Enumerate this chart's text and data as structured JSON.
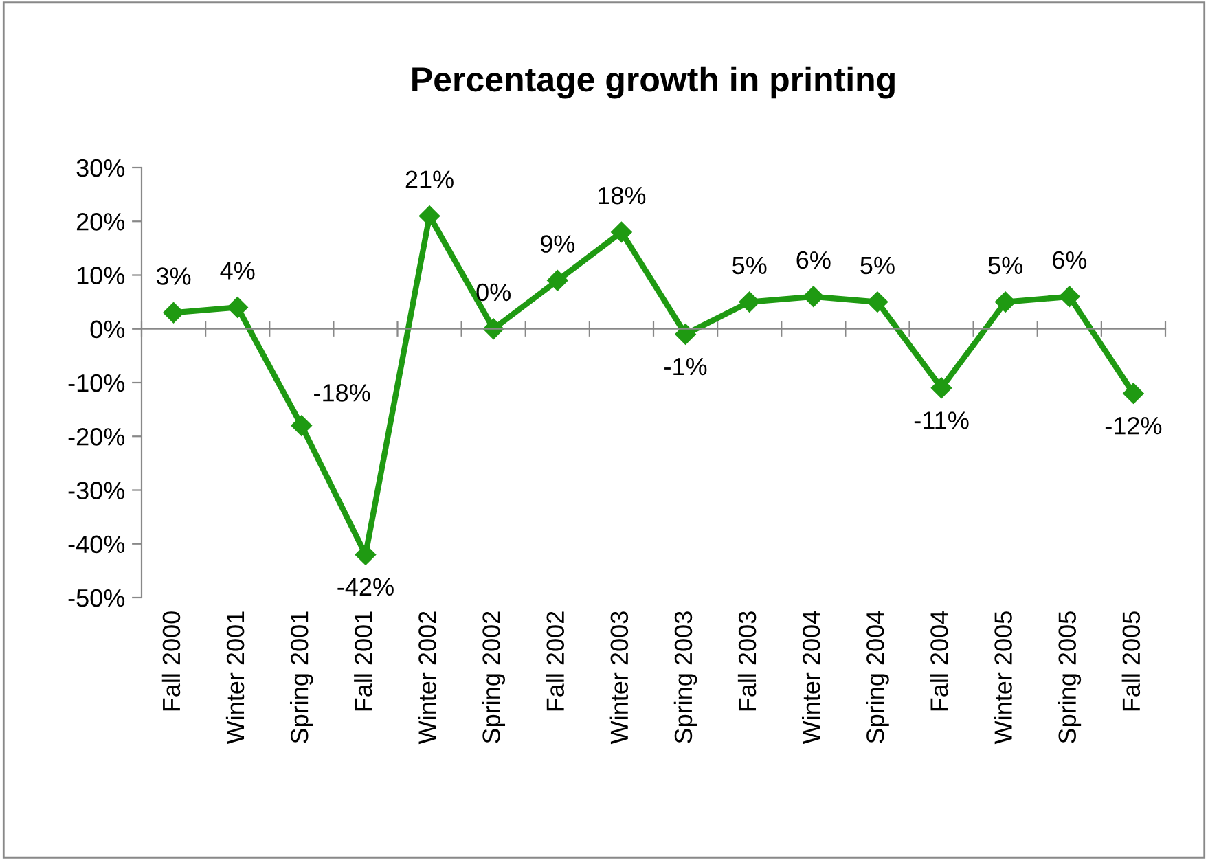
{
  "chart_data": {
    "type": "line",
    "title": "Percentage growth in printing",
    "categories": [
      "Fall 2000",
      "Winter 2001",
      "Spring 2001",
      "Fall 2001",
      "Winter 2002",
      "Spring 2002",
      "Fall 2002",
      "Winter 2003",
      "Spring 2003",
      "Fall 2003",
      "Winter 2004",
      "Spring 2004",
      "Fall 2004",
      "Winter 2005",
      "Spring 2005",
      "Fall 2005"
    ],
    "series": [
      {
        "color": "#1f9a12",
        "values": [
          3,
          4,
          -18,
          -42,
          21,
          0,
          9,
          18,
          -1,
          5,
          6,
          5,
          -11,
          5,
          6,
          -12
        ],
        "value_labels": [
          "3%",
          "4%",
          "-18%",
          "-42%",
          "21%",
          "0%",
          "9%",
          "18%",
          "-1%",
          "5%",
          "6%",
          "5%",
          "-11%",
          "5%",
          "6%",
          "-12%"
        ]
      }
    ],
    "ylim": [
      -50,
      30
    ],
    "yticks": [
      {
        "value": -50,
        "label": "-50%"
      },
      {
        "value": -40,
        "label": "-40%"
      },
      {
        "value": -30,
        "label": "-30%"
      },
      {
        "value": -20,
        "label": "-20%"
      },
      {
        "value": -10,
        "label": "-10%"
      },
      {
        "value": 0,
        "label": "0%"
      },
      {
        "value": 10,
        "label": "10%"
      },
      {
        "value": 20,
        "label": "20%"
      },
      {
        "value": 30,
        "label": "30%"
      }
    ],
    "marker": "diamond",
    "line_style": "solid",
    "legend": false
  }
}
